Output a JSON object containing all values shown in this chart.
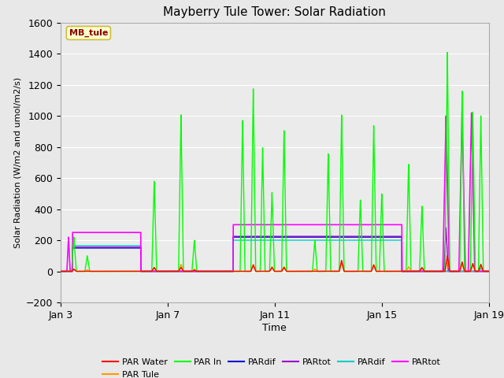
{
  "title": "Mayberry Tule Tower: Solar Radiation",
  "xlabel": "Time",
  "ylabel": "Solar Radiation (W/m2 and umol/m2/s)",
  "ylim": [
    -200,
    1600
  ],
  "xlim": [
    0,
    16
  ],
  "bg_color": "#e8e8e8",
  "plot_bg": "#ebebeb",
  "legend_labels": [
    "PAR Water",
    "PAR Tule",
    "PAR In",
    "PARdif",
    "PARtot",
    "PARdif",
    "PARtot"
  ],
  "legend_colors": [
    "#ff0000",
    "#ff9900",
    "#00ff00",
    "#0000cc",
    "#9900cc",
    "#00cccc",
    "#ff00ff"
  ],
  "xtick_labels": [
    "Jan 3",
    "Jan 7",
    "Jan 11",
    "Jan 15",
    "Jan 19"
  ],
  "xtick_positions": [
    0,
    4,
    8,
    12,
    16
  ],
  "ytick_positions": [
    -200,
    0,
    200,
    400,
    600,
    800,
    1000,
    1200,
    1400,
    1600
  ],
  "annotation_text": "MB_tule",
  "annotation_box_color": "#ffffcc",
  "annotation_text_color": "#880000",
  "figsize": [
    6.4,
    4.8
  ],
  "dpi": 100
}
